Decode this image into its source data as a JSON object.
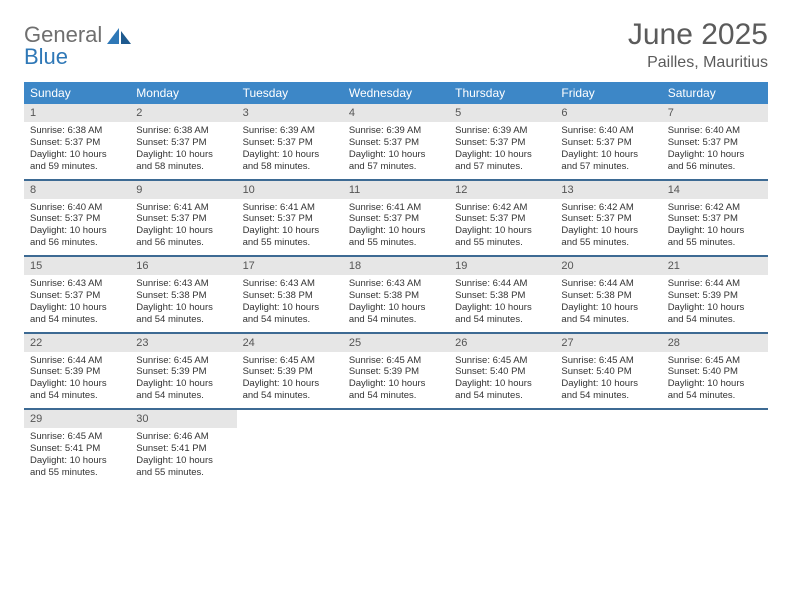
{
  "logo": {
    "word1": "General",
    "word2": "Blue"
  },
  "colors": {
    "header_bg": "#3d87c7",
    "header_text": "#ffffff",
    "daynum_bg": "#e6e6e6",
    "week_border": "#3d6a93",
    "title_text": "#5b5b5b",
    "logo_gray": "#6f6f6f",
    "logo_blue": "#2f78b7"
  },
  "title": "June 2025",
  "location": "Pailles, Mauritius",
  "dow": [
    "Sunday",
    "Monday",
    "Tuesday",
    "Wednesday",
    "Thursday",
    "Friday",
    "Saturday"
  ],
  "weeks": [
    [
      {
        "n": "1",
        "sr": "Sunrise: 6:38 AM",
        "ss": "Sunset: 5:37 PM",
        "d1": "Daylight: 10 hours",
        "d2": "and 59 minutes."
      },
      {
        "n": "2",
        "sr": "Sunrise: 6:38 AM",
        "ss": "Sunset: 5:37 PM",
        "d1": "Daylight: 10 hours",
        "d2": "and 58 minutes."
      },
      {
        "n": "3",
        "sr": "Sunrise: 6:39 AM",
        "ss": "Sunset: 5:37 PM",
        "d1": "Daylight: 10 hours",
        "d2": "and 58 minutes."
      },
      {
        "n": "4",
        "sr": "Sunrise: 6:39 AM",
        "ss": "Sunset: 5:37 PM",
        "d1": "Daylight: 10 hours",
        "d2": "and 57 minutes."
      },
      {
        "n": "5",
        "sr": "Sunrise: 6:39 AM",
        "ss": "Sunset: 5:37 PM",
        "d1": "Daylight: 10 hours",
        "d2": "and 57 minutes."
      },
      {
        "n": "6",
        "sr": "Sunrise: 6:40 AM",
        "ss": "Sunset: 5:37 PM",
        "d1": "Daylight: 10 hours",
        "d2": "and 57 minutes."
      },
      {
        "n": "7",
        "sr": "Sunrise: 6:40 AM",
        "ss": "Sunset: 5:37 PM",
        "d1": "Daylight: 10 hours",
        "d2": "and 56 minutes."
      }
    ],
    [
      {
        "n": "8",
        "sr": "Sunrise: 6:40 AM",
        "ss": "Sunset: 5:37 PM",
        "d1": "Daylight: 10 hours",
        "d2": "and 56 minutes."
      },
      {
        "n": "9",
        "sr": "Sunrise: 6:41 AM",
        "ss": "Sunset: 5:37 PM",
        "d1": "Daylight: 10 hours",
        "d2": "and 56 minutes."
      },
      {
        "n": "10",
        "sr": "Sunrise: 6:41 AM",
        "ss": "Sunset: 5:37 PM",
        "d1": "Daylight: 10 hours",
        "d2": "and 55 minutes."
      },
      {
        "n": "11",
        "sr": "Sunrise: 6:41 AM",
        "ss": "Sunset: 5:37 PM",
        "d1": "Daylight: 10 hours",
        "d2": "and 55 minutes."
      },
      {
        "n": "12",
        "sr": "Sunrise: 6:42 AM",
        "ss": "Sunset: 5:37 PM",
        "d1": "Daylight: 10 hours",
        "d2": "and 55 minutes."
      },
      {
        "n": "13",
        "sr": "Sunrise: 6:42 AM",
        "ss": "Sunset: 5:37 PM",
        "d1": "Daylight: 10 hours",
        "d2": "and 55 minutes."
      },
      {
        "n": "14",
        "sr": "Sunrise: 6:42 AM",
        "ss": "Sunset: 5:37 PM",
        "d1": "Daylight: 10 hours",
        "d2": "and 55 minutes."
      }
    ],
    [
      {
        "n": "15",
        "sr": "Sunrise: 6:43 AM",
        "ss": "Sunset: 5:37 PM",
        "d1": "Daylight: 10 hours",
        "d2": "and 54 minutes."
      },
      {
        "n": "16",
        "sr": "Sunrise: 6:43 AM",
        "ss": "Sunset: 5:38 PM",
        "d1": "Daylight: 10 hours",
        "d2": "and 54 minutes."
      },
      {
        "n": "17",
        "sr": "Sunrise: 6:43 AM",
        "ss": "Sunset: 5:38 PM",
        "d1": "Daylight: 10 hours",
        "d2": "and 54 minutes."
      },
      {
        "n": "18",
        "sr": "Sunrise: 6:43 AM",
        "ss": "Sunset: 5:38 PM",
        "d1": "Daylight: 10 hours",
        "d2": "and 54 minutes."
      },
      {
        "n": "19",
        "sr": "Sunrise: 6:44 AM",
        "ss": "Sunset: 5:38 PM",
        "d1": "Daylight: 10 hours",
        "d2": "and 54 minutes."
      },
      {
        "n": "20",
        "sr": "Sunrise: 6:44 AM",
        "ss": "Sunset: 5:38 PM",
        "d1": "Daylight: 10 hours",
        "d2": "and 54 minutes."
      },
      {
        "n": "21",
        "sr": "Sunrise: 6:44 AM",
        "ss": "Sunset: 5:39 PM",
        "d1": "Daylight: 10 hours",
        "d2": "and 54 minutes."
      }
    ],
    [
      {
        "n": "22",
        "sr": "Sunrise: 6:44 AM",
        "ss": "Sunset: 5:39 PM",
        "d1": "Daylight: 10 hours",
        "d2": "and 54 minutes."
      },
      {
        "n": "23",
        "sr": "Sunrise: 6:45 AM",
        "ss": "Sunset: 5:39 PM",
        "d1": "Daylight: 10 hours",
        "d2": "and 54 minutes."
      },
      {
        "n": "24",
        "sr": "Sunrise: 6:45 AM",
        "ss": "Sunset: 5:39 PM",
        "d1": "Daylight: 10 hours",
        "d2": "and 54 minutes."
      },
      {
        "n": "25",
        "sr": "Sunrise: 6:45 AM",
        "ss": "Sunset: 5:39 PM",
        "d1": "Daylight: 10 hours",
        "d2": "and 54 minutes."
      },
      {
        "n": "26",
        "sr": "Sunrise: 6:45 AM",
        "ss": "Sunset: 5:40 PM",
        "d1": "Daylight: 10 hours",
        "d2": "and 54 minutes."
      },
      {
        "n": "27",
        "sr": "Sunrise: 6:45 AM",
        "ss": "Sunset: 5:40 PM",
        "d1": "Daylight: 10 hours",
        "d2": "and 54 minutes."
      },
      {
        "n": "28",
        "sr": "Sunrise: 6:45 AM",
        "ss": "Sunset: 5:40 PM",
        "d1": "Daylight: 10 hours",
        "d2": "and 54 minutes."
      }
    ],
    [
      {
        "n": "29",
        "sr": "Sunrise: 6:45 AM",
        "ss": "Sunset: 5:41 PM",
        "d1": "Daylight: 10 hours",
        "d2": "and 55 minutes."
      },
      {
        "n": "30",
        "sr": "Sunrise: 6:46 AM",
        "ss": "Sunset: 5:41 PM",
        "d1": "Daylight: 10 hours",
        "d2": "and 55 minutes."
      },
      {
        "empty": true
      },
      {
        "empty": true
      },
      {
        "empty": true
      },
      {
        "empty": true
      },
      {
        "empty": true
      }
    ]
  ]
}
